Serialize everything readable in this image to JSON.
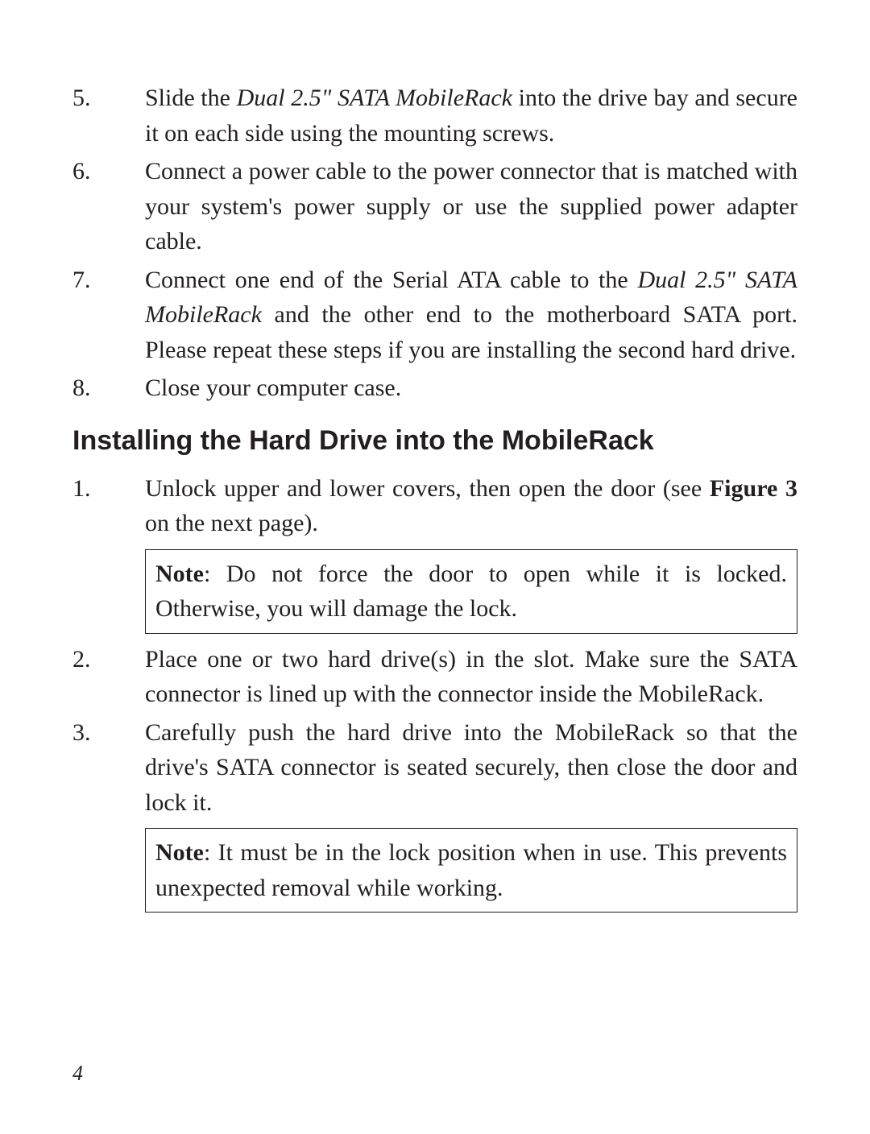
{
  "colors": {
    "text": "#231f20",
    "background": "#ffffff",
    "border": "#231f20"
  },
  "typography": {
    "body_family": "Book Antiqua, Palatino, Georgia, serif",
    "heading_family": "Arial, Helvetica, sans-serif",
    "body_size_pt": 30,
    "heading_size_pt": 34,
    "pagenum_size_pt": 26,
    "line_height": 1.45,
    "justify": true
  },
  "listA": {
    "items": [
      {
        "num": "5.",
        "pre": "Slide the ",
        "em": "Dual 2.5\" SATA MobileRack",
        "post": " into the drive bay and secure it on each side using the mounting screws."
      },
      {
        "num": "6.",
        "pre": "Connect a power cable to the power connector that is matched with your system's power supply or use the supplied power adapter cable.",
        "em": "",
        "post": ""
      },
      {
        "num": "7.",
        "pre": "Connect one end of the Serial ATA cable to the ",
        "em": "Dual 2.5\" SATA MobileRack",
        "post": " and the other end to the motherboard SATA port.  Please repeat these steps if you are installing the second hard drive."
      },
      {
        "num": "8.",
        "pre": "Close your computer case.",
        "em": "",
        "post": ""
      }
    ]
  },
  "heading": "Installing the Hard Drive into the MobileRack",
  "listB": {
    "item1": {
      "num": "1.",
      "pre": "Unlock upper and lower covers, then open the door (see ",
      "bold": "Figure 3",
      "post": " on the next page)."
    },
    "note1": {
      "bold": "Note",
      "rest": ": Do not force the door to open while it is locked. Otherwise, you will damage the lock."
    },
    "item2": {
      "num": "2.",
      "text": "Place one or two hard drive(s) in the slot.  Make sure the SATA connector is lined up with the connector inside the MobileRack."
    },
    "item3": {
      "num": "3.",
      "text": "Carefully push the hard drive into the MobileRack so that the drive's SATA connector is seated securely, then close the door and lock it."
    },
    "note2": {
      "bold": "Note",
      "rest": ":  It must be in the lock position when in use. This prevents unexpected removal while working."
    }
  },
  "page_number": "4"
}
